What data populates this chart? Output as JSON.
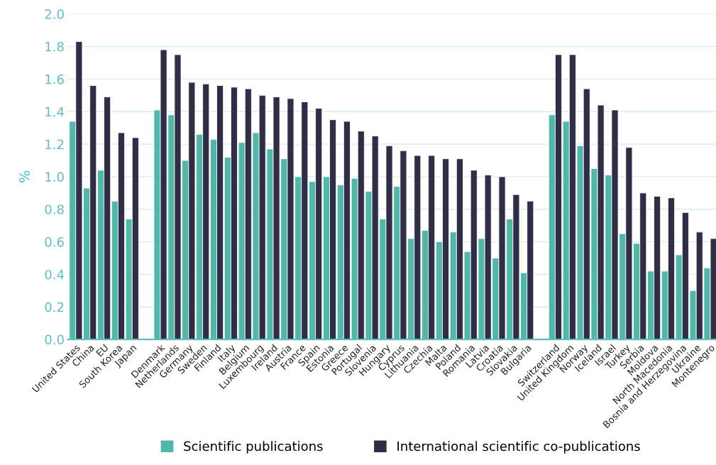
{
  "chart_data": {
    "type": "bar",
    "ylabel": "%",
    "categories": [
      "United States",
      "China",
      "EU",
      "South Korea",
      "Japan",
      null,
      "Denmark",
      "Netherlands",
      "Germany",
      "Sweden",
      "Finland",
      "Italy",
      "Belgium",
      "Luxembourg",
      "Ireland",
      "Austria",
      "France",
      "Spain",
      "Estonia",
      "Greece",
      "Portugal",
      "Slovenia",
      "Hungary",
      "Cyprus",
      "Lithuania",
      "Czechia",
      "Malta",
      "Poland",
      "Romania",
      "Latvia",
      "Croatia",
      "Slovakia",
      "Bulgaria",
      null,
      "Switzerland",
      "United Kingdom",
      "Norway",
      "Iceland",
      "Israel",
      "Turkey",
      "Serbia",
      "Moldova",
      "North Macedonia",
      "Bosnia and Herzegovina",
      "Ukraine",
      "Montenegro"
    ],
    "series": [
      {
        "name": "Scientific publications",
        "color": "#50b8a8",
        "values": [
          1.34,
          0.93,
          1.04,
          0.85,
          0.74,
          null,
          1.41,
          1.38,
          1.1,
          1.26,
          1.23,
          1.12,
          1.21,
          1.27,
          1.17,
          1.11,
          1.0,
          0.97,
          1.0,
          0.95,
          0.99,
          0.91,
          0.74,
          0.94,
          0.62,
          0.67,
          0.6,
          0.66,
          0.54,
          0.62,
          0.5,
          0.74,
          0.41,
          null,
          1.38,
          1.34,
          1.19,
          1.05,
          1.01,
          0.65,
          0.59,
          0.42,
          0.42,
          0.52,
          0.3,
          0.44
        ]
      },
      {
        "name": "International scientific co-publications",
        "color": "#302d46",
        "values": [
          1.83,
          1.56,
          1.49,
          1.27,
          1.24,
          null,
          1.78,
          1.75,
          1.58,
          1.57,
          1.56,
          1.55,
          1.54,
          1.5,
          1.49,
          1.48,
          1.46,
          1.42,
          1.35,
          1.34,
          1.28,
          1.25,
          1.19,
          1.16,
          1.13,
          1.13,
          1.11,
          1.11,
          1.04,
          1.01,
          1.0,
          0.89,
          0.85,
          null,
          1.75,
          1.75,
          1.54,
          1.44,
          1.41,
          1.18,
          0.9,
          0.88,
          0.87,
          0.78,
          0.66,
          0.62
        ]
      }
    ],
    "ylim": [
      0,
      2.0
    ],
    "yticks": [
      {
        "value": 0,
        "label": "0.0"
      },
      {
        "value": 0.2,
        "label": "0.2"
      },
      {
        "value": 0.4,
        "label": "0.4"
      },
      {
        "value": 0.6,
        "label": "0.6"
      },
      {
        "value": 0.8,
        "label": "0.8"
      },
      {
        "value": 1.0,
        "label": "1.0"
      },
      {
        "value": 1.2,
        "label": "1.2"
      },
      {
        "value": 1.4,
        "label": "1.4"
      },
      {
        "value": 1.6,
        "label": "1.6"
      },
      {
        "value": 1.8,
        "label": "1.8"
      },
      {
        "value": 2.0,
        "label": "2.0"
      }
    ],
    "grid": "y",
    "legend": "bottom"
  }
}
